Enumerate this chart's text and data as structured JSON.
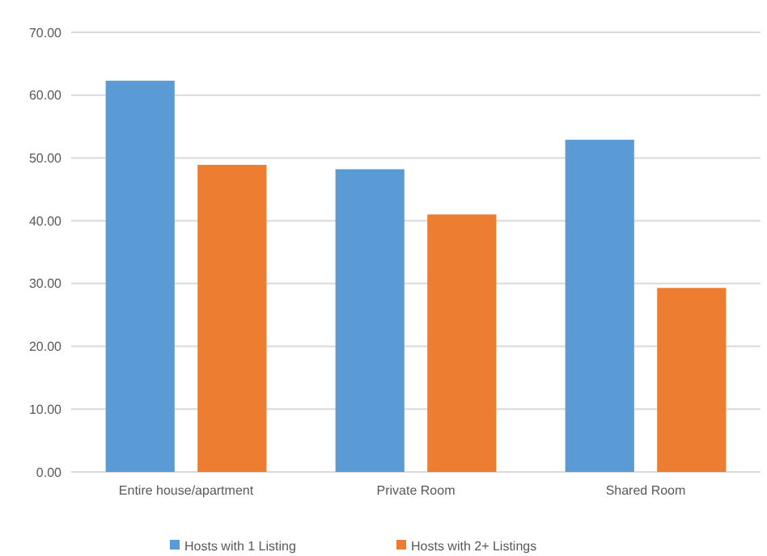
{
  "chart_data": {
    "type": "bar",
    "categories": [
      "Entire house/apartment",
      "Private Room",
      "Shared Room"
    ],
    "series": [
      {
        "name": "Hosts with 1 Listing",
        "color": "#5b9bd5",
        "values": [
          62.3,
          48.2,
          52.9
        ]
      },
      {
        "name": "Hosts with 2+ Listings",
        "color": "#ed7d31",
        "values": [
          48.9,
          41.0,
          29.3
        ]
      }
    ],
    "ylim": [
      0,
      70
    ],
    "yticks": [
      {
        "value": 0,
        "label": "0.00"
      },
      {
        "value": 10,
        "label": "10.00"
      },
      {
        "value": 20,
        "label": "20.00"
      },
      {
        "value": 30,
        "label": "30.00"
      },
      {
        "value": 40,
        "label": "40.00"
      },
      {
        "value": 50,
        "label": "50.00"
      },
      {
        "value": 60,
        "label": "60.00"
      },
      {
        "value": 70,
        "label": "70.00"
      }
    ],
    "grid": "y",
    "legend": "bottom"
  }
}
